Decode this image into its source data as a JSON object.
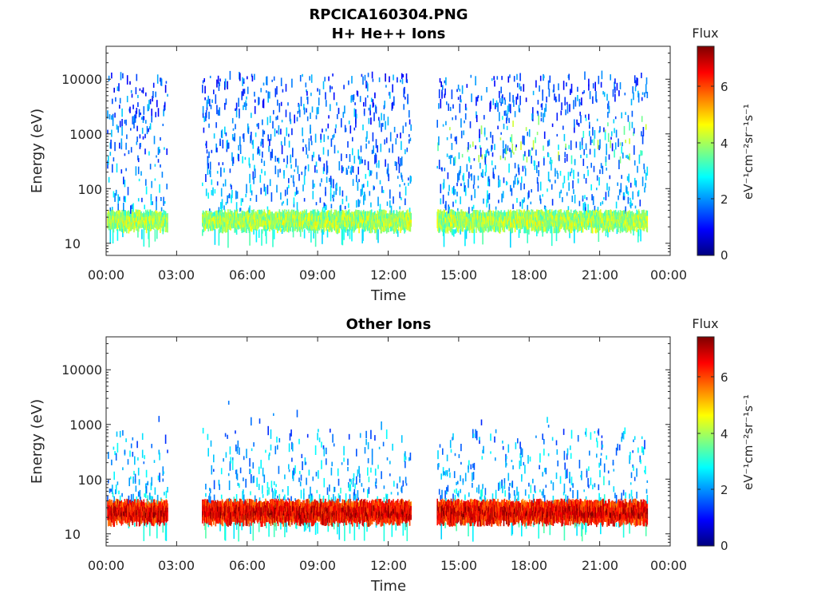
{
  "figure": {
    "title": "RPCICA160304.PNG"
  },
  "colorbar": {
    "title": "Flux",
    "units": "eV⁻¹cm⁻²sr⁻¹s⁻¹",
    "ticks": [
      "0",
      "2",
      "4",
      "6"
    ],
    "range": [
      0,
      7.4
    ],
    "colormap": "jet"
  },
  "chart_data": [
    {
      "type": "heatmap",
      "title": "H+ He++ Ions",
      "xlabel": "Time",
      "ylabel": "Energy (eV)",
      "x_ticks": [
        "00:00",
        "03:00",
        "06:00",
        "09:00",
        "12:00",
        "15:00",
        "18:00",
        "21:00",
        "00:00"
      ],
      "xlim_hours": [
        0,
        24
      ],
      "y_ticks": [
        "10",
        "100",
        "1000",
        "10000"
      ],
      "ylim": [
        6,
        40000
      ],
      "yscale": "log",
      "data_gaps_hours": [
        [
          2.6,
          4.05
        ],
        [
          12.95,
          14.05
        ]
      ],
      "data_end_hours": 23.0,
      "bands": [
        {
          "energy_range_eV": [
            18,
            40
          ],
          "typical_flux": 3.5
        },
        {
          "energy_range_eV": [
            40,
            12000
          ],
          "typical_flux": 2.0
        }
      ]
    },
    {
      "type": "heatmap",
      "title": "Other Ions",
      "xlabel": "Time",
      "ylabel": "Energy (eV)",
      "x_ticks": [
        "00:00",
        "03:00",
        "06:00",
        "09:00",
        "12:00",
        "15:00",
        "18:00",
        "21:00",
        "00:00"
      ],
      "xlim_hours": [
        0,
        24
      ],
      "y_ticks": [
        "10",
        "100",
        "1000",
        "10000"
      ],
      "ylim": [
        6,
        40000
      ],
      "yscale": "log",
      "data_gaps_hours": [
        [
          2.6,
          4.05
        ],
        [
          12.95,
          14.05
        ]
      ],
      "data_end_hours": 23.0,
      "bands": [
        {
          "energy_range_eV": [
            16,
            42
          ],
          "typical_flux": 5.5
        },
        {
          "energy_range_eV": [
            42,
            800
          ],
          "typical_flux": 2.2
        }
      ]
    }
  ]
}
